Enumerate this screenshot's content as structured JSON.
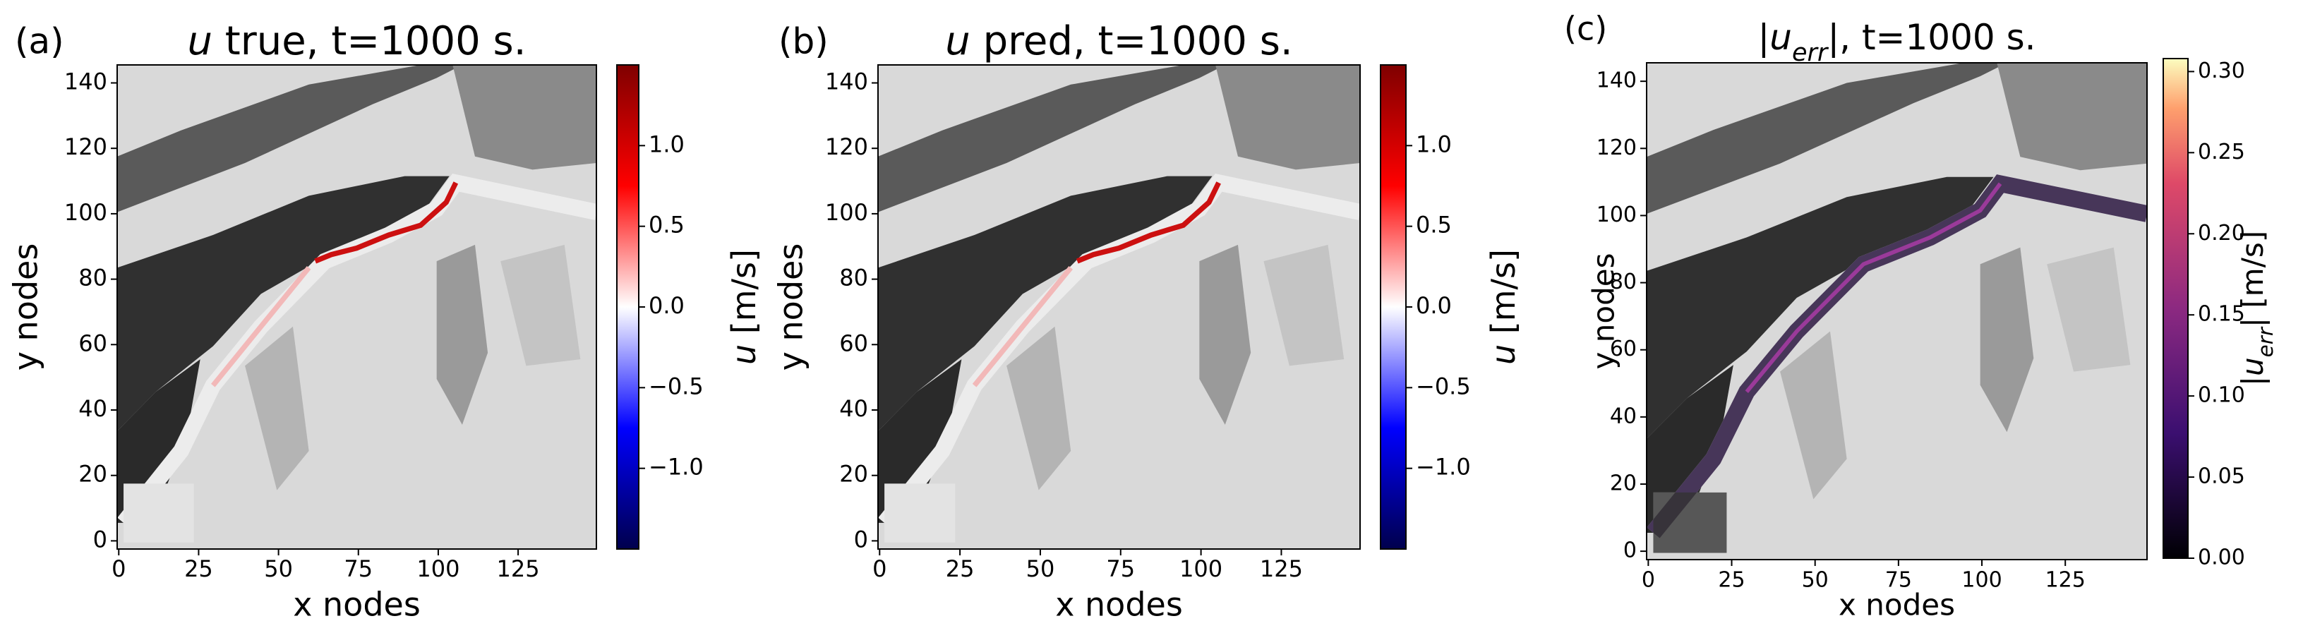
{
  "chart_data": [
    {
      "type": "heatmap",
      "panel_label": "(a)",
      "title": {
        "variable": "u",
        "text": " true, t=1000 s."
      },
      "xlabel": "x nodes",
      "ylabel": "y nodes",
      "xlim": [
        -0.5,
        149.5
      ],
      "ylim": [
        -2.5,
        145.5
      ],
      "xticks": [
        0,
        25,
        50,
        75,
        100,
        125
      ],
      "yticks": [
        0,
        20,
        40,
        60,
        80,
        100,
        120,
        140
      ],
      "colormap": "seismic",
      "clim": [
        -1.5,
        1.5
      ],
      "cticks": [
        {
          "value": -1.0,
          "label": "−1.0"
        },
        {
          "value": -0.5,
          "label": "−0.5"
        },
        {
          "value": 0.0,
          "label": "0.0"
        },
        {
          "value": 0.5,
          "label": "0.5"
        },
        {
          "value": 1.0,
          "label": "1.0"
        }
      ],
      "colorbar_label": {
        "variable": "u",
        "text": " [m/s]"
      }
    },
    {
      "type": "heatmap",
      "panel_label": "(b)",
      "title": {
        "variable": "u",
        "text": " pred, t=1000 s."
      },
      "xlabel": "x nodes",
      "ylabel": "y nodes",
      "xlim": [
        -0.5,
        149.5
      ],
      "ylim": [
        -2.5,
        145.5
      ],
      "xticks": [
        0,
        25,
        50,
        75,
        100,
        125
      ],
      "yticks": [
        0,
        20,
        40,
        60,
        80,
        100,
        120,
        140
      ],
      "colormap": "seismic",
      "clim": [
        -1.5,
        1.5
      ],
      "cticks": [
        {
          "value": -1.0,
          "label": "−1.0"
        },
        {
          "value": -0.5,
          "label": "−0.5"
        },
        {
          "value": 0.0,
          "label": "0.0"
        },
        {
          "value": 0.5,
          "label": "0.5"
        },
        {
          "value": 1.0,
          "label": "1.0"
        }
      ],
      "colorbar_label": {
        "variable": "u",
        "text": " [m/s]"
      }
    },
    {
      "type": "heatmap",
      "panel_label": "(c)",
      "title": {
        "variable": "|u",
        "subscript": "err",
        "text": "|, t=1000 s."
      },
      "xlabel": "x nodes",
      "ylabel": "y nodes",
      "xlim": [
        -0.5,
        149.5
      ],
      "ylim": [
        -2.5,
        145.5
      ],
      "xticks": [
        0,
        25,
        50,
        75,
        100,
        125
      ],
      "yticks": [
        0,
        20,
        40,
        60,
        80,
        100,
        120,
        140
      ],
      "colormap": "magma",
      "clim": [
        0,
        0.308
      ],
      "cticks": [
        {
          "value": 0,
          "label": "0.00"
        },
        {
          "value": 0.05,
          "label": "0.05"
        },
        {
          "value": 0.1,
          "label": "0.10"
        },
        {
          "value": 0.15,
          "label": "0.15"
        },
        {
          "value": 0.2,
          "label": "0.20"
        },
        {
          "value": 0.25,
          "label": "0.25"
        },
        {
          "value": 0.3,
          "label": "0.30"
        }
      ],
      "colorbar_label": {
        "variable": "|u",
        "subscript": "err",
        "text": "| [m/s]"
      }
    }
  ]
}
